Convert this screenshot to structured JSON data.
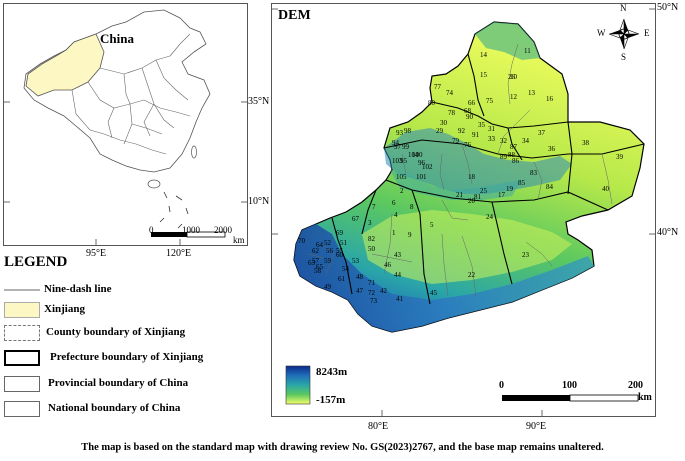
{
  "inset": {
    "title": "China",
    "lat_labels": [
      "35°N",
      "10°N"
    ],
    "lon_labels": [
      "95°E",
      "120°E"
    ],
    "scale_ticks": [
      "0",
      "1000",
      "2000"
    ],
    "scale_unit": "km"
  },
  "legend": {
    "title": "LEGEND",
    "items": [
      {
        "label": "Nine-dash line",
        "style": "line"
      },
      {
        "label": "Xinjiang",
        "style": "fill",
        "color": "#fdf7c3"
      },
      {
        "label": "County boundary of Xinjiang",
        "style": "dashed"
      },
      {
        "label": "Prefecture boundary of Xinjiang",
        "style": "thick"
      },
      {
        "label": "Provincial boundary of China",
        "style": "thin"
      },
      {
        "label": "National boundary of China",
        "style": "thin"
      }
    ]
  },
  "dem": {
    "title": "DEM",
    "lat_labels": [
      "50°N",
      "40°N"
    ],
    "lon_labels": [
      "80°E",
      "90°E"
    ],
    "compass": {
      "n": "N",
      "s": "S",
      "e": "E",
      "w": "W"
    },
    "colorbar": {
      "max_label": "8243m",
      "min_label": "-157m",
      "colors": [
        "#0b2a8c",
        "#1f6fb8",
        "#2aa6a8",
        "#5cc860",
        "#b6e84a",
        "#f2ff6a"
      ]
    },
    "scale_ticks": [
      "0",
      "100",
      "200"
    ],
    "scale_unit": "km",
    "region_numbers": [
      "1",
      "2",
      "3",
      "4",
      "5",
      "6",
      "7",
      "8",
      "9",
      "10",
      "11",
      "12",
      "13",
      "14",
      "15",
      "16",
      "17",
      "18",
      "19",
      "20",
      "21",
      "22",
      "23",
      "24",
      "25",
      "26",
      "29",
      "30",
      "31",
      "32",
      "33",
      "34",
      "35",
      "36",
      "37",
      "38",
      "39",
      "40",
      "41",
      "42",
      "43",
      "44",
      "45",
      "46",
      "47",
      "48",
      "49",
      "50",
      "51",
      "52",
      "53",
      "54",
      "55",
      "56",
      "57",
      "58",
      "59",
      "60",
      "61",
      "62",
      "63",
      "64",
      "65",
      "66",
      "67",
      "68",
      "69",
      "70",
      "71",
      "72",
      "73",
      "74",
      "75",
      "76",
      "77",
      "78",
      "79",
      "80",
      "81",
      "82",
      "83",
      "84",
      "85",
      "86",
      "87",
      "88",
      "89",
      "90",
      "91",
      "92",
      "93",
      "94",
      "95",
      "96",
      "97",
      "98",
      "99",
      "100",
      "101",
      "102",
      "103",
      "104",
      "105"
    ]
  },
  "caption": "The map is based on the standard map with drawing review No. GS(2023)2767, and the base map remains unaltered."
}
